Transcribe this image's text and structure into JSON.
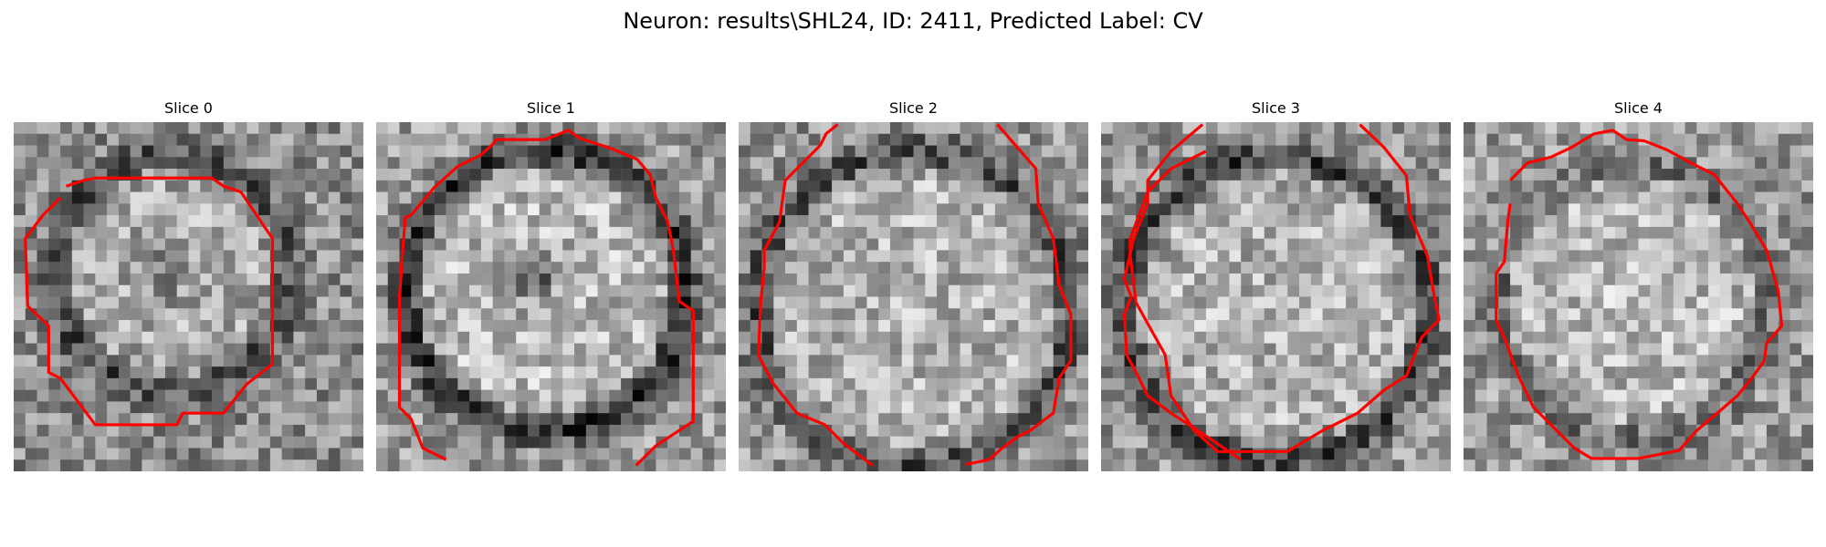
{
  "figure": {
    "title": "Neuron: results\\SHL24, ID: 2411, Predicted Label: CV"
  },
  "overlay_color": "#ff0000",
  "panels": [
    {
      "title": "Slice 0"
    },
    {
      "title": "Slice 1"
    },
    {
      "title": "Slice 2"
    },
    {
      "title": "Slice 3"
    },
    {
      "title": "Slice 4"
    }
  ]
}
